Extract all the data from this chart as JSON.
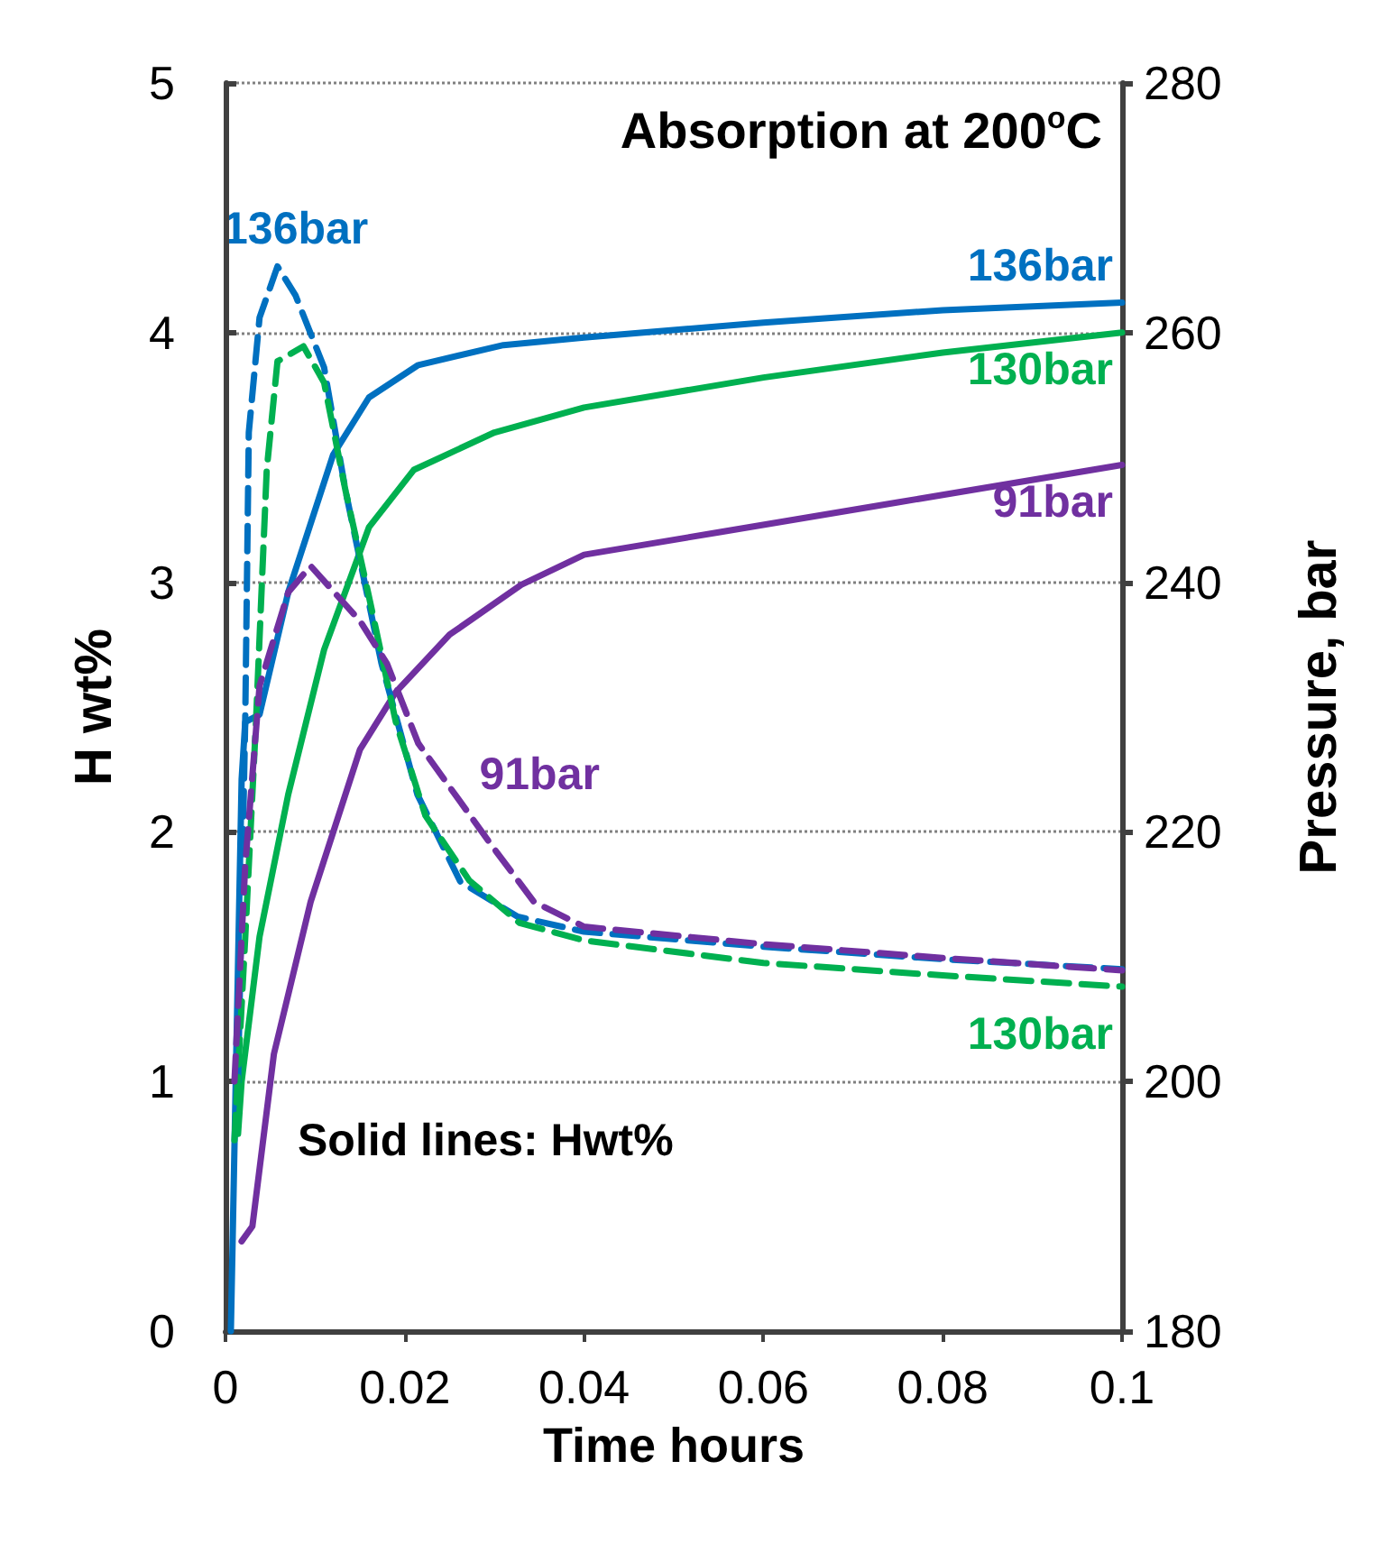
{
  "chart_data": {
    "type": "line",
    "title": "Absorption at 200$^{o}$C",
    "xlabel": "Time hours",
    "ylabel": "H wt%",
    "y2label": "Pressure, bar",
    "xlim": [
      0,
      0.1
    ],
    "xticks": [
      0,
      0.02,
      0.04,
      0.06,
      0.08,
      0.1
    ],
    "ylim": [
      0,
      5
    ],
    "yticks": [
      0,
      1,
      2,
      3,
      4,
      5
    ],
    "y2lim": [
      180,
      280
    ],
    "y2ticks": [
      180,
      200,
      220,
      240,
      260,
      280
    ],
    "grid": "y",
    "marker": "none",
    "series": [
      {
        "name": "136bar",
        "color": "#0070c0",
        "line_style": "solid",
        "x": [
          0.0006,
          0.0018,
          0.0022,
          0.0038,
          0.007,
          0.012,
          0.016,
          0.0215,
          0.031,
          0.04,
          0.06,
          0.08,
          0.1
        ],
        "values": [
          0,
          2.21,
          2.44,
          2.47,
          2.96,
          3.51,
          3.74,
          3.87,
          3.95,
          3.98,
          4.04,
          4.09,
          4.12
        ]
      },
      {
        "name": "130bar",
        "color": "#00b050",
        "line_style": "solid",
        "x": [
          0.0014,
          0.0018,
          0.0038,
          0.007,
          0.011,
          0.016,
          0.021,
          0.03,
          0.04,
          0.06,
          0.08,
          0.1
        ],
        "values": [
          0.79,
          1.0,
          1.58,
          2.15,
          2.73,
          3.22,
          3.45,
          3.6,
          3.7,
          3.82,
          3.92,
          4.0
        ]
      },
      {
        "name": "91bar",
        "color": "#7030a0",
        "line_style": "solid",
        "x": [
          0.0018,
          0.003,
          0.0054,
          0.0095,
          0.015,
          0.019,
          0.025,
          0.033,
          0.04,
          0.055,
          0.075,
          0.1
        ],
        "values": [
          0.36,
          0.42,
          1.11,
          1.72,
          2.33,
          2.56,
          2.79,
          2.99,
          3.11,
          3.2,
          3.32,
          3.47
        ]
      },
      {
        "name": "136bar",
        "color": "#0070c0",
        "line_style": "dashed",
        "axis": "y2",
        "x": [
          0.0014,
          0.0022,
          0.0026,
          0.0038,
          0.0058,
          0.0078,
          0.011,
          0.0134,
          0.0174,
          0.0214,
          0.0262,
          0.0326,
          0.04,
          0.06,
          0.08,
          0.1
        ],
        "values": [
          200,
          228.8,
          252,
          261.2,
          265.3,
          263,
          257.2,
          247.3,
          233.5,
          223,
          216,
          213.2,
          212,
          210.8,
          209.8,
          209
        ]
      },
      {
        "name": "130bar",
        "color": "#00b050",
        "line_style": "dashed",
        "axis": "y2",
        "x": [
          0.001,
          0.0022,
          0.0034,
          0.0046,
          0.0058,
          0.0087,
          0.011,
          0.0134,
          0.0159,
          0.019,
          0.0223,
          0.0272,
          0.0328,
          0.04,
          0.06,
          0.08,
          0.1
        ],
        "values": [
          195.3,
          211.5,
          228.8,
          249,
          257.7,
          258.9,
          256,
          247.3,
          239.2,
          228.8,
          221.3,
          216.1,
          212.7,
          211.3,
          209.5,
          208.5,
          207.6
        ]
      },
      {
        "name": "91bar",
        "color": "#7030a0",
        "line_style": "dashed",
        "axis": "y2",
        "x": [
          0.001,
          0.0022,
          0.0038,
          0.007,
          0.0095,
          0.015,
          0.018,
          0.0215,
          0.0255,
          0.0296,
          0.0344,
          0.04,
          0.06,
          0.08,
          0.1
        ],
        "values": [
          200,
          217.3,
          231.7,
          239.2,
          241.3,
          236.9,
          233.5,
          227.1,
          223.1,
          219,
          214.4,
          212.4,
          211,
          209.9,
          208.9
        ]
      }
    ],
    "annotations": [
      "Solid lines: Hwt%"
    ]
  }
}
